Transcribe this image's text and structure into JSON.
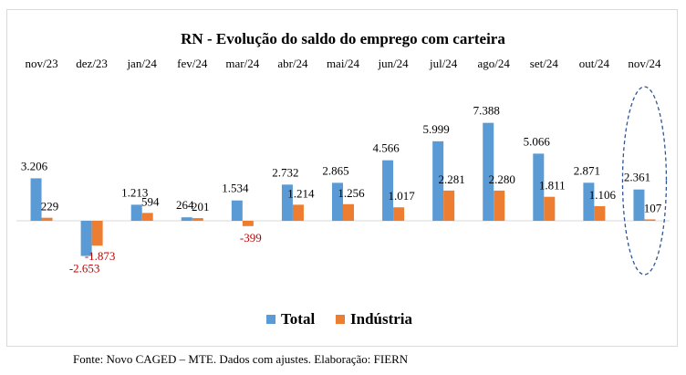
{
  "chart_data": {
    "type": "bar",
    "title": "RN - Evolução do saldo do emprego com carteira",
    "categories": [
      "nov/23",
      "dez/23",
      "jan/24",
      "fev/24",
      "mar/24",
      "abr/24",
      "mai/24",
      "jun/24",
      "jul/24",
      "ago/24",
      "set/24",
      "out/24",
      "nov/24"
    ],
    "series": [
      {
        "name": "Total",
        "color": "#5b9bd5",
        "values": [
          3206,
          -2653,
          1213,
          264,
          1534,
          2732,
          2865,
          4566,
          5999,
          7388,
          5066,
          2871,
          2361
        ],
        "labels": [
          "3.206",
          "-2.653",
          "1.213",
          "264",
          "1.534",
          "2.732",
          "2.865",
          "4.566",
          "5.999",
          "7.388",
          "5.066",
          "2.871",
          "2.361"
        ]
      },
      {
        "name": "Indústria",
        "color": "#ed7d31",
        "values": [
          229,
          -1873,
          594,
          201,
          -399,
          1214,
          1256,
          1017,
          2281,
          2280,
          1811,
          1106,
          107
        ],
        "labels": [
          "229",
          "-1.873",
          "594",
          "201",
          "-399",
          "1.214",
          "1.256",
          "1.017",
          "2.281",
          "2.280",
          "1.811",
          "1.106",
          "107"
        ]
      }
    ],
    "negative_label_color": "#c00000",
    "highlighted_category": "nov/24",
    "highlight_color": "#2f5597",
    "legend_position": "bottom",
    "grid": false,
    "ylim": [
      -4200,
      9000
    ]
  },
  "source": "Fonte: Novo CAGED – MTE. Dados com ajustes. Elaboração: FIERN"
}
